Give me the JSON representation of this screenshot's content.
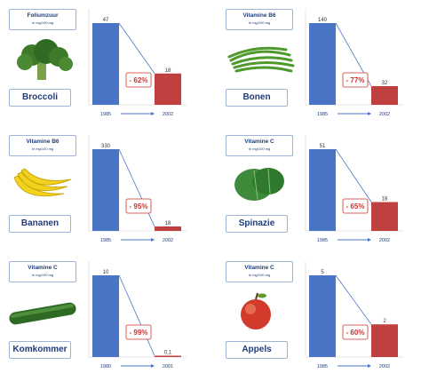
{
  "panels": [
    {
      "nutrient": "Foliumzuur",
      "unit": "In mg/100 mg",
      "food": "Broccoli",
      "icon": "broccoli-icon",
      "year_start": "1985",
      "year_end": "2002",
      "value_start": "47",
      "value_end": "18",
      "change": "- 62%",
      "v0": 47,
      "v1": 18
    },
    {
      "nutrient": "Vitamine B6",
      "unit": "In mg/100 mg",
      "food": "Bonen",
      "icon": "beans-icon",
      "year_start": "1985",
      "year_end": "2002",
      "value_start": "140",
      "value_end": "32",
      "change": "- 77%",
      "v0": 140,
      "v1": 32
    },
    {
      "nutrient": "Vitamine B6",
      "unit": "In mg/100 mg",
      "food": "Bananen",
      "icon": "bananas-icon",
      "year_start": "1985",
      "year_end": "2002",
      "value_start": "330",
      "value_end": "18",
      "change": "- 95%",
      "v0": 330,
      "v1": 18
    },
    {
      "nutrient": "Vitamine C",
      "unit": "In mg/100 mg",
      "food": "Spinazie",
      "icon": "spinach-icon",
      "year_start": "1985",
      "year_end": "2002",
      "value_start": "51",
      "value_end": "18",
      "change": "- 65%",
      "v0": 51,
      "v1": 18
    },
    {
      "nutrient": "Vitamine C",
      "unit": "In mg/100 mg",
      "food": "Komkommer",
      "icon": "cucumber-icon",
      "year_start": "1980",
      "year_end": "2001",
      "value_start": "10",
      "value_end": "0,1",
      "change": "- 99%",
      "v0": 10,
      "v1": 0.1
    },
    {
      "nutrient": "Vitamine C",
      "unit": "In mg/100 mg",
      "food": "Appels",
      "icon": "apple-icon",
      "year_start": "1985",
      "year_end": "2002",
      "value_start": "5",
      "value_end": "2",
      "change": "- 60%",
      "v0": 5,
      "v1": 2
    }
  ],
  "colors": {
    "bar_start": "#4a75c4",
    "bar_end": "#c0403f",
    "accent_text": "#1f3c7a",
    "change_text": "#d0302c"
  },
  "chart_data": [
    {
      "type": "bar",
      "title": "Foliumzuur",
      "categories": [
        "1985",
        "2002"
      ],
      "values": [
        47,
        18
      ],
      "annotation": "- 62%"
    },
    {
      "type": "bar",
      "title": "Vitamine B6",
      "categories": [
        "1985",
        "2002"
      ],
      "values": [
        140,
        32
      ],
      "annotation": "- 77%"
    },
    {
      "type": "bar",
      "title": "Vitamine B6",
      "categories": [
        "1985",
        "2002"
      ],
      "values": [
        330,
        18
      ],
      "annotation": "- 95%"
    },
    {
      "type": "bar",
      "title": "Vitamine C",
      "categories": [
        "1985",
        "2002"
      ],
      "values": [
        51,
        18
      ],
      "annotation": "- 65%"
    },
    {
      "type": "bar",
      "title": "Vitamine C",
      "categories": [
        "1980",
        "2001"
      ],
      "values": [
        10,
        0.1
      ],
      "annotation": "- 99%"
    },
    {
      "type": "bar",
      "title": "Vitamine C",
      "categories": [
        "1985",
        "2002"
      ],
      "values": [
        5,
        2
      ],
      "annotation": "- 60%"
    }
  ]
}
